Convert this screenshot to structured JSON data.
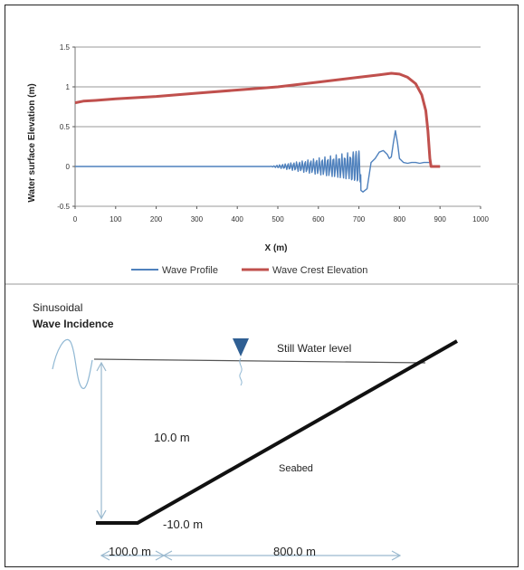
{
  "chart_data": {
    "type": "line",
    "title": "",
    "xlabel": "X (m)",
    "ylabel": "Water surface Elevation (m)",
    "xlim": [
      0,
      1000
    ],
    "ylim": [
      -0.5,
      1.5
    ],
    "x_ticks": [
      "0",
      "100",
      "200",
      "300",
      "400",
      "500",
      "600",
      "700",
      "800",
      "900",
      "1000"
    ],
    "y_ticks": [
      "-0.5",
      "0",
      "0.5",
      "1",
      "1.5"
    ],
    "grid": "horizontal",
    "legend": "bottom",
    "series": [
      {
        "name": "Wave Profile",
        "color": "#4f81bd",
        "x": [
          0,
          100,
          200,
          300,
          400,
          480,
          500,
          520,
          540,
          560,
          580,
          600,
          620,
          640,
          660,
          680,
          690,
          700,
          705,
          710,
          720,
          730,
          740,
          750,
          760,
          770,
          775,
          780,
          785,
          790,
          795,
          800,
          810,
          820,
          830,
          840,
          850,
          860,
          870,
          875,
          880,
          890,
          900
        ],
        "y": [
          0,
          0,
          0,
          0,
          0,
          0,
          0.01,
          0.02,
          -0.02,
          0.03,
          -0.04,
          0.05,
          -0.06,
          0.07,
          -0.08,
          0.08,
          -0.1,
          0.12,
          -0.3,
          -0.32,
          -0.28,
          0.05,
          0.1,
          0.18,
          0.2,
          0.15,
          0.1,
          0.12,
          0.3,
          0.45,
          0.3,
          0.1,
          0.05,
          0.04,
          0.05,
          0.05,
          0.04,
          0.05,
          0.05,
          0.05,
          0,
          0,
          0
        ]
      },
      {
        "name": "Wave Crest Elevation",
        "color": "#c0504d",
        "x": [
          0,
          20,
          50,
          100,
          200,
          300,
          400,
          500,
          600,
          700,
          750,
          780,
          800,
          820,
          840,
          855,
          865,
          870,
          875,
          878,
          880,
          890,
          900
        ],
        "y": [
          0.8,
          0.82,
          0.83,
          0.85,
          0.88,
          0.92,
          0.96,
          1.0,
          1.06,
          1.12,
          1.15,
          1.17,
          1.16,
          1.12,
          1.04,
          0.9,
          0.7,
          0.45,
          0.1,
          0.0,
          0.0,
          0.0,
          0.0
        ]
      }
    ]
  },
  "diagram": {
    "incidence_line1": "Sinusoidal",
    "incidence_line2": "Wave Incidence",
    "still_water_label": "Still Water level",
    "depth_label": "10.0 m",
    "seabed_label": "Seabed",
    "bed_level_label": "-10.0 m",
    "flat_length_label": "100.0 m",
    "slope_length_label": "800.0 m",
    "colors": {
      "seabed": "#111111",
      "dimension_line": "#9ab9cf",
      "water_marker": "#2f5f93",
      "water_line": "#555555"
    }
  }
}
